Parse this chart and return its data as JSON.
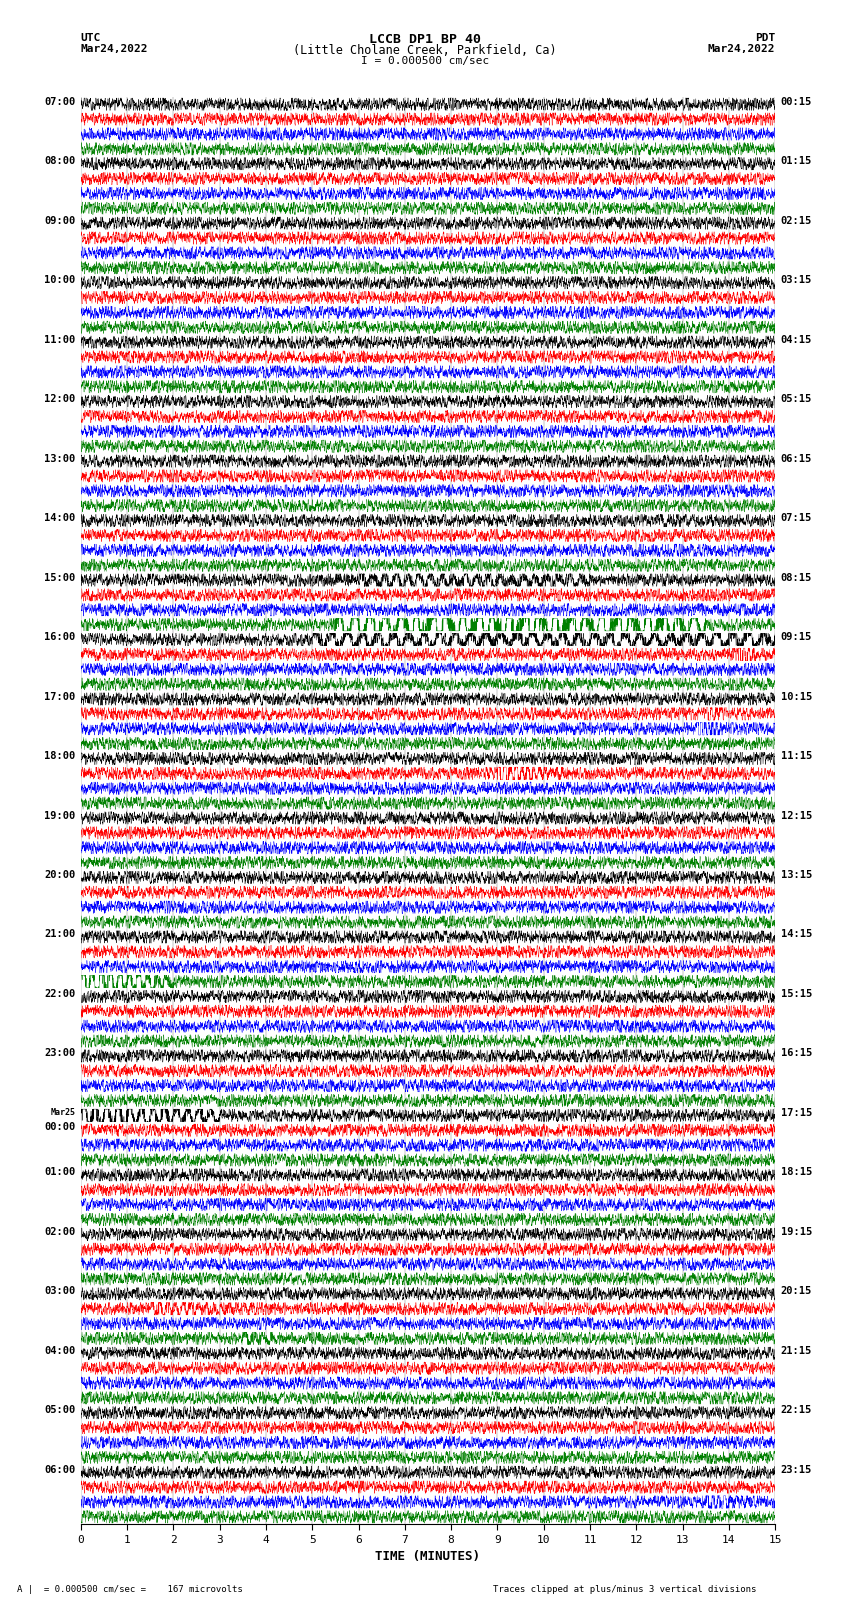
{
  "title_line1": "LCCB DP1 BP 40",
  "title_line2": "(Little Cholane Creek, Parkfield, Ca)",
  "scale_label": "I = 0.000500 cm/sec",
  "left_header": "UTC",
  "left_date": "Mar24,2022",
  "right_header": "PDT",
  "right_date": "Mar24,2022",
  "xlabel": "TIME (MINUTES)",
  "bottom_left": "= 0.000500 cm/sec =    167 microvolts",
  "bottom_right": "Traces clipped at plus/minus 3 vertical divisions",
  "utc_labels": [
    "07:00",
    "08:00",
    "09:00",
    "10:00",
    "11:00",
    "12:00",
    "13:00",
    "14:00",
    "15:00",
    "16:00",
    "17:00",
    "18:00",
    "19:00",
    "20:00",
    "21:00",
    "22:00",
    "23:00",
    "Mar25\n00:00",
    "01:00",
    "02:00",
    "03:00",
    "04:00",
    "05:00",
    "06:00"
  ],
  "pdt_labels": [
    "00:15",
    "01:15",
    "02:15",
    "03:15",
    "04:15",
    "05:15",
    "06:15",
    "07:15",
    "08:15",
    "09:15",
    "10:15",
    "11:15",
    "12:15",
    "13:15",
    "14:15",
    "15:15",
    "16:15",
    "17:15",
    "18:15",
    "19:15",
    "20:15",
    "21:15",
    "22:15",
    "23:15"
  ],
  "colors": [
    "black",
    "red",
    "blue",
    "green"
  ],
  "n_hours": 24,
  "traces_per_hour": 4,
  "x_min": 0,
  "x_max": 15,
  "fig_width": 8.5,
  "fig_height": 16.13,
  "dpi": 100,
  "lmargin": 0.095,
  "rmargin": 0.088,
  "tmargin": 0.06,
  "bmargin": 0.055
}
